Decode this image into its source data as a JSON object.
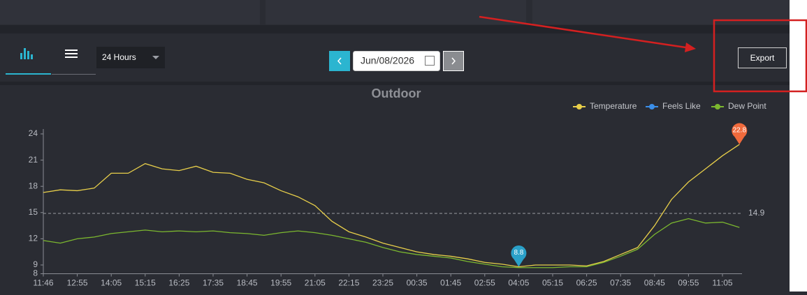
{
  "toolbar": {
    "range": "24 Hours",
    "date": "Jun/08/2026",
    "export": "Export"
  },
  "chart_data": {
    "type": "line",
    "title": "Outdoor",
    "categories": [
      "11:46",
      null,
      "12:55",
      null,
      "14:05",
      null,
      "15:15",
      null,
      "16:25",
      null,
      "17:35",
      null,
      "18:45",
      null,
      "19:55",
      null,
      "21:05",
      null,
      "22:15",
      null,
      "23:25",
      null,
      "00:35",
      null,
      "01:45",
      null,
      "02:55",
      null,
      "04:05",
      null,
      "05:15",
      null,
      "06:25",
      null,
      "07:35",
      null,
      "08:45",
      null,
      "09:55",
      null,
      "11:05",
      null
    ],
    "series": [
      {
        "name": "Temperature",
        "color": "#e8cf4a",
        "values": [
          17.3,
          17.6,
          17.5,
          17.8,
          19.5,
          19.5,
          20.6,
          20.0,
          19.8,
          20.3,
          19.6,
          19.5,
          18.8,
          18.4,
          17.5,
          16.8,
          15.8,
          14.0,
          12.8,
          12.2,
          11.5,
          11.0,
          10.5,
          10.2,
          10.0,
          9.7,
          9.3,
          9.1,
          8.8,
          9.0,
          9.0,
          9.0,
          8.9,
          9.4,
          10.2,
          11.0,
          13.5,
          16.5,
          18.5,
          20.0,
          21.5,
          22.8
        ]
      },
      {
        "name": "Feels Like",
        "color": "#3b8ee8"
      },
      {
        "name": "Dew Point",
        "color": "#7cb82f",
        "values": [
          11.8,
          11.5,
          12.0,
          12.2,
          12.6,
          12.8,
          13.0,
          12.8,
          12.9,
          12.8,
          12.9,
          12.7,
          12.6,
          12.4,
          12.7,
          12.9,
          12.7,
          12.4,
          12.0,
          11.6,
          11.0,
          10.5,
          10.2,
          10.0,
          9.8,
          9.4,
          9.1,
          8.8,
          8.7,
          8.7,
          8.7,
          8.8,
          8.8,
          9.3,
          10.0,
          10.8,
          12.5,
          13.8,
          14.3,
          13.8,
          13.9,
          13.3
        ]
      }
    ],
    "markers": [
      {
        "index": 41,
        "value": 22.8,
        "color": "#f06a3c"
      },
      {
        "index": 28,
        "value": 8.8,
        "color": "#2aa0c8"
      }
    ],
    "reference_line": 14.9,
    "ylim": [
      8,
      24
    ],
    "yticks": [
      8,
      9,
      12,
      15,
      18,
      21,
      24
    ]
  }
}
